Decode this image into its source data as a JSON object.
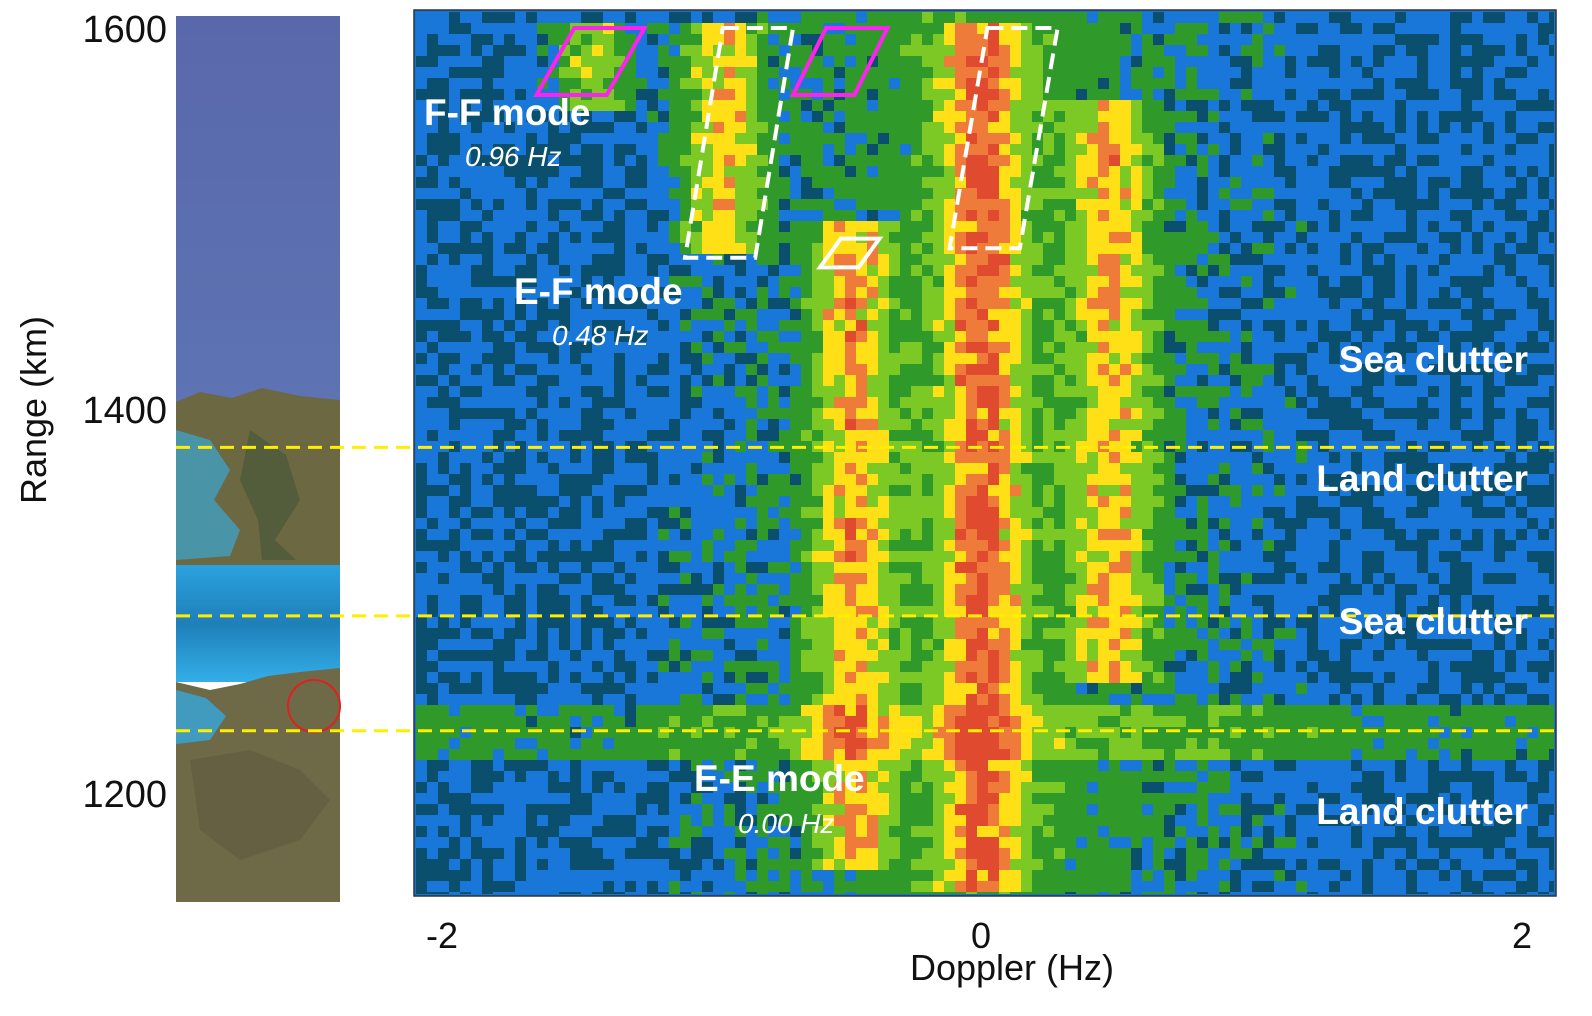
{
  "chart_data": {
    "type": "heatmap",
    "title": "",
    "xlabel": "Doppler (Hz)",
    "ylabel": "Range (km)",
    "xlim": [
      -2,
      2
    ],
    "ylim": [
      1150,
      1600
    ],
    "x_ticks": [
      {
        "value": -2,
        "label": "-2"
      },
      {
        "value": 0,
        "label": "0"
      },
      {
        "value": 2,
        "label": "2"
      }
    ],
    "y_ticks": [
      {
        "value": 1600,
        "label": "1600"
      },
      {
        "value": 1400,
        "label": "1400"
      },
      {
        "value": 1200,
        "label": "1200"
      }
    ],
    "colorscale": [
      "#0a4f6e",
      "#1877d8",
      "#2f9a2a",
      "#7cc824",
      "#ffe016",
      "#ef7b3a",
      "#e04a2e"
    ],
    "divider_ranges_km": [
      1381,
      1293,
      1233
    ],
    "divider_color": "#ffee00",
    "region_labels": [
      {
        "text": "Sea clutter",
        "range_km": 1410
      },
      {
        "text": "Land clutter",
        "range_km": 1350
      },
      {
        "text": "Sea clutter",
        "range_km": 1270
      },
      {
        "text": "Land clutter",
        "range_km": 1178
      }
    ],
    "mode_annotations": [
      {
        "mode": "F-F mode",
        "doppler": "0.96 Hz"
      },
      {
        "mode": "E-F mode",
        "doppler": "0.48 Hz"
      },
      {
        "mode": "E-E mode",
        "doppler": "0.00 Hz"
      }
    ],
    "echo_bands": [
      {
        "doppler_hz": 0.0,
        "range_from_km": 1150,
        "range_to_km": 1600,
        "strength": 1.0
      },
      {
        "doppler_hz": -0.48,
        "range_from_km": 1160,
        "range_to_km": 1500,
        "strength": 0.8
      },
      {
        "doppler_hz": 0.48,
        "range_from_km": 1260,
        "range_to_km": 1560,
        "strength": 0.75
      },
      {
        "doppler_hz": -0.96,
        "range_from_km": 1480,
        "range_to_km": 1600,
        "strength": 0.85
      },
      {
        "doppler_hz": -1.44,
        "range_from_km": 1555,
        "range_to_km": 1600,
        "strength": 0.7
      }
    ],
    "highlight_boxes": [
      {
        "style": "white-dashed",
        "doppler_range": [
          -1.1,
          -0.7
        ],
        "range_km": [
          1480,
          1600
        ]
      },
      {
        "style": "white-dashed",
        "doppler_range": [
          -0.12,
          0.28
        ],
        "range_km": [
          1485,
          1600
        ]
      },
      {
        "style": "magenta-solid",
        "doppler_range": [
          -1.65,
          -1.25
        ],
        "range_km": [
          1565,
          1600
        ]
      },
      {
        "style": "magenta-solid",
        "doppler_range": [
          -0.7,
          -0.35
        ],
        "range_km": [
          1565,
          1600
        ]
      },
      {
        "style": "white-solid",
        "doppler_range": [
          -0.6,
          -0.38
        ],
        "range_km": [
          1475,
          1490
        ]
      }
    ],
    "legend": "none",
    "grid": false
  },
  "map_strip": {
    "description_colors": {
      "sea_deep": "#5a6fae",
      "sea_shallow": "#2fa3dc",
      "land": "#6f6a43",
      "marker_circle": "#e02020"
    }
  }
}
